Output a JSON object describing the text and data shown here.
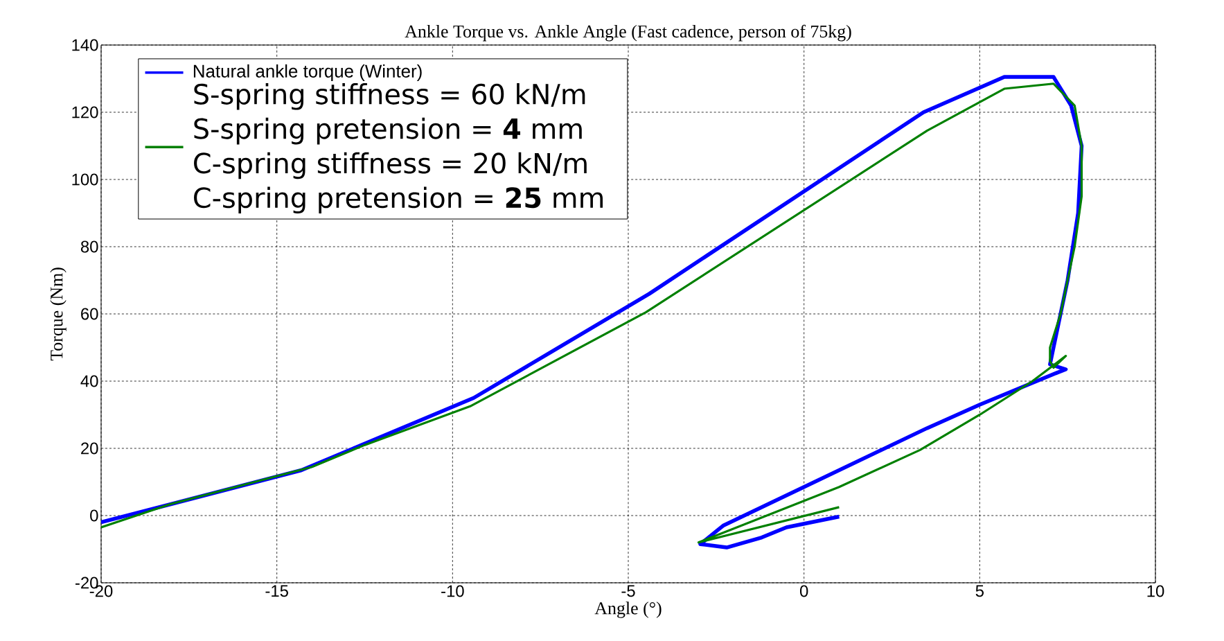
{
  "chart_data": {
    "type": "line",
    "title": "Ankle Torque vs. Ankle Angle (Fast cadence, person of 75kg)",
    "xlabel": "Angle (°)",
    "ylabel": "Torque (Nm)",
    "xlim": [
      -20,
      10
    ],
    "ylim": [
      -20,
      140
    ],
    "xticks": [
      -20,
      -15,
      -10,
      -5,
      0,
      5,
      10
    ],
    "yticks": [
      -20,
      0,
      20,
      40,
      60,
      80,
      100,
      120,
      140
    ],
    "grid": true,
    "legend": "top left",
    "series": [
      {
        "name": "Natural ankle torque (Winter)",
        "color": "#0000ff",
        "x": [
          -20,
          -14.3,
          -9.4,
          -4.4,
          3.4,
          5.7,
          7.1,
          7.6,
          7.9,
          7.8,
          7.5,
          7.1,
          7.0,
          7.45,
          7.2,
          5,
          3.5,
          0,
          -2.3,
          -2.95,
          -2.2,
          -1.2,
          -0.5,
          1
        ],
        "values": [
          -2,
          13.5,
          35,
          66,
          120,
          130.5,
          130.5,
          122,
          110,
          90,
          70,
          50,
          45,
          43.5,
          42.5,
          33,
          26,
          8.5,
          -3,
          -8.5,
          -9.5,
          -6.5,
          -3.5,
          -0.3
        ]
      },
      {
        "name": "S-spring stiffness = 60 kN/m S-spring pretension = **4** mm C-spring stiffness = 20 kN/m C-spring pretension = **25** mm",
        "color": "#008000",
        "x": [
          -20,
          -18,
          -14,
          -12.5,
          -9.5,
          -4.5,
          3.5,
          5.7,
          7.1,
          7.7,
          7.9,
          7.9,
          7.7,
          7.3,
          7.0,
          7.0,
          7.1,
          7.45,
          6.5,
          5,
          3.3,
          1,
          -3,
          1
        ],
        "values": [
          -3.5,
          3.5,
          14.5,
          21,
          32.5,
          60.5,
          114.5,
          127,
          128.5,
          122,
          110,
          95,
          80,
          60,
          50,
          46,
          44,
          47.5,
          40,
          30,
          19.5,
          8.5,
          -8,
          2.5
        ]
      }
    ]
  }
}
